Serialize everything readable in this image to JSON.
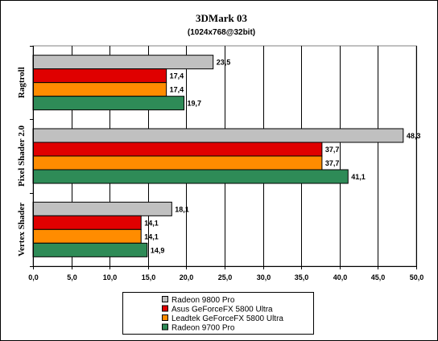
{
  "chart_data": {
    "type": "bar",
    "orientation": "horizontal",
    "title": "3DMark 03",
    "subtitle": "(1024x768@32bit)",
    "categories": [
      "Ragtroll",
      "Pixel Shader 2.0",
      "Vertex Shader"
    ],
    "series": [
      {
        "name": "Radeon 9800 Pro",
        "color": "#c0c0c0",
        "values": [
          23.5,
          48.3,
          18.1
        ],
        "labels": [
          "23,5",
          "48,3",
          "18,1"
        ]
      },
      {
        "name": "Asus GeForceFX 5800 Ultra",
        "color": "#e00000",
        "values": [
          17.4,
          37.7,
          14.1
        ],
        "labels": [
          "17,4",
          "37,7",
          "14,1"
        ]
      },
      {
        "name": "Leadtek GeForceFX 5800 Ultra",
        "color": "#ff8c00",
        "values": [
          17.4,
          37.7,
          14.1
        ],
        "labels": [
          "17,4",
          "37,7",
          "14,1"
        ]
      },
      {
        "name": "Radeon 9700 Pro",
        "color": "#2e8b57",
        "values": [
          19.7,
          41.1,
          14.9
        ],
        "labels": [
          "19,7",
          "41,1",
          "14,9"
        ]
      }
    ],
    "xlim": [
      0,
      50
    ],
    "xticks": [
      "0,0",
      "5,0",
      "10,0",
      "15,0",
      "20,0",
      "25,0",
      "30,0",
      "35,0",
      "40,0",
      "45,0",
      "50,0"
    ],
    "xlabel": "",
    "ylabel": "",
    "grid": "vertical",
    "legend_position": "bottom-center",
    "plot_background": "#ffffff"
  }
}
